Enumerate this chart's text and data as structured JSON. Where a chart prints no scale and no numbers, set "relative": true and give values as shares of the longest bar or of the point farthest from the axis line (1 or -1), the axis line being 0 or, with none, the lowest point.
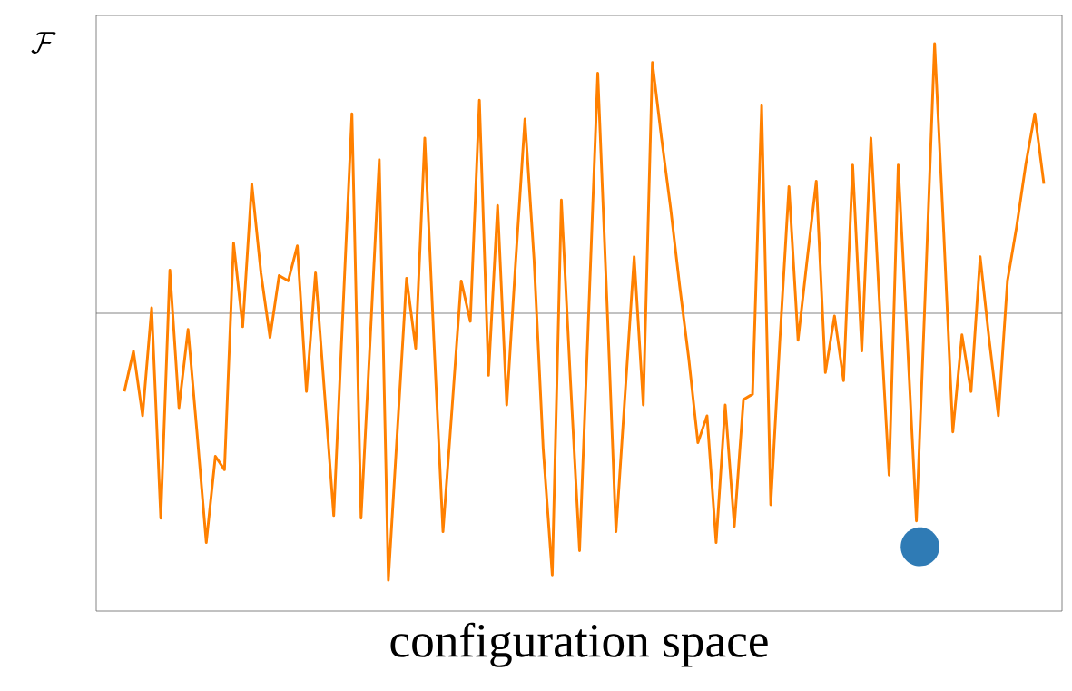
{
  "chart_data": {
    "type": "line",
    "xlabel": "configuration space",
    "annotations": [
      "\\mathcal{F}"
    ],
    "relative": true,
    "tick_labels": false,
    "categories": [
      null,
      null,
      null,
      null,
      null,
      null,
      null,
      null,
      null,
      null,
      null,
      null,
      null,
      null,
      null,
      null,
      null,
      null,
      null,
      null,
      null,
      null,
      null,
      null,
      null,
      null,
      null,
      null,
      null,
      null,
      null,
      null,
      null,
      null,
      null,
      null,
      null,
      null,
      null,
      null,
      null,
      null,
      null,
      null,
      null,
      null,
      null,
      null,
      null,
      null,
      null,
      null,
      null,
      null,
      null,
      null,
      null,
      null,
      null,
      null,
      null,
      null,
      null,
      null,
      null,
      null,
      null,
      null,
      null,
      null,
      null,
      null,
      null,
      null,
      null,
      null,
      null,
      null,
      null,
      null,
      null,
      null,
      null,
      null,
      null,
      null,
      null,
      null,
      null,
      null,
      null,
      null,
      null,
      null,
      null,
      null,
      null,
      null,
      null,
      null,
      null,
      null
    ],
    "series": [
      {
        "color": "#ff8000",
        "marker": "none",
        "values": [
          -0.29,
          -0.14,
          -0.38,
          0.02,
          -0.76,
          0.16,
          -0.35,
          -0.06,
          -0.45,
          -0.85,
          -0.53,
          -0.58,
          0.26,
          -0.05,
          0.48,
          0.15,
          -0.09,
          0.14,
          0.12,
          0.25,
          -0.29,
          0.15,
          -0.3,
          -0.75,
          0.0,
          0.74,
          -0.76,
          -0.1,
          0.57,
          -0.99,
          -0.43,
          0.13,
          -0.13,
          0.65,
          -0.1,
          -0.81,
          -0.35,
          0.12,
          -0.03,
          0.79,
          -0.23,
          0.4,
          -0.34,
          0.2,
          0.72,
          0.2,
          -0.5,
          -0.97,
          0.42,
          -0.25,
          -0.88,
          0.0,
          0.89,
          0.05,
          -0.81,
          -0.3,
          0.21,
          -0.34,
          0.93,
          0.65,
          0.39,
          0.1,
          -0.17,
          -0.48,
          -0.38,
          -0.85,
          -0.34,
          -0.79,
          -0.32,
          -0.3,
          0.77,
          -0.71,
          -0.1,
          0.47,
          -0.1,
          0.2,
          0.49,
          -0.22,
          -0.01,
          -0.25,
          0.55,
          -0.14,
          0.65,
          0.0,
          -0.6,
          0.55,
          -0.1,
          -0.77,
          0.1,
          1.0,
          0.3,
          -0.44,
          -0.08,
          -0.29,
          0.21,
          -0.1,
          -0.38,
          0.12,
          0.32,
          0.55,
          0.74,
          0.48
        ]
      }
    ]
  }
}
